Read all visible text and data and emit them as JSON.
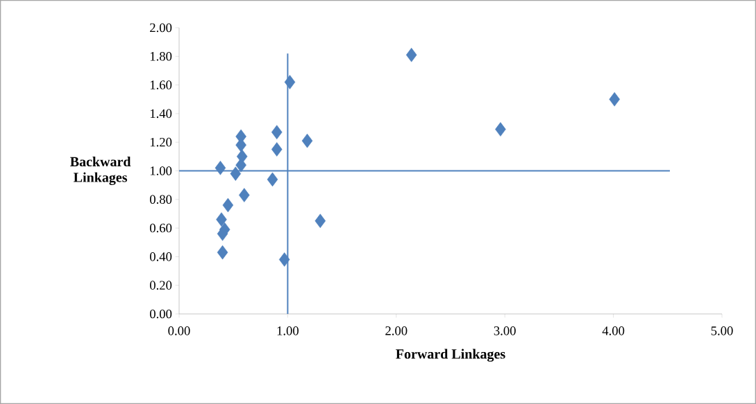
{
  "chart_data": {
    "type": "scatter",
    "xlabel": "Forward Linkages",
    "ylabel": "Backward Linkages",
    "series": [
      {
        "color": "#4f81bd",
        "marker": "diamond",
        "x": [
          0.57,
          0.9,
          1.18,
          0.57,
          0.9,
          0.58,
          0.57,
          0.38,
          0.52,
          0.86,
          0.6,
          0.45,
          0.39,
          0.42,
          0.4,
          1.3,
          0.4,
          0.97,
          1.02,
          2.14,
          2.96,
          4.01
        ],
        "values": [
          1.24,
          1.27,
          1.21,
          1.18,
          1.15,
          1.1,
          1.04,
          1.02,
          0.98,
          0.94,
          0.83,
          0.76,
          0.66,
          0.59,
          0.56,
          0.65,
          0.43,
          0.38,
          1.62,
          1.81,
          1.29,
          1.5
        ]
      },
      {
        "type": "line",
        "color": "#4f81bd",
        "marker": "none",
        "line_style": "solid",
        "x": [
          1,
          1
        ],
        "values": [
          0,
          1.82
        ]
      },
      {
        "type": "line",
        "color": "#4f81bd",
        "marker": "none",
        "line_style": "solid",
        "x": [
          0,
          4.52
        ],
        "values": [
          1,
          1
        ]
      }
    ],
    "xlim": [
      0,
      5
    ],
    "ylim": [
      0,
      2
    ],
    "xticks": [
      {
        "value": 0,
        "label": "0.00"
      },
      {
        "value": 1,
        "label": "1.00"
      },
      {
        "value": 2,
        "label": "2.00"
      },
      {
        "value": 3,
        "label": "3.00"
      },
      {
        "value": 4,
        "label": "4.00"
      },
      {
        "value": 5,
        "label": "5.00"
      }
    ],
    "yticks": [
      {
        "value": 0,
        "label": "0.00"
      },
      {
        "value": 0.2,
        "label": "0.20"
      },
      {
        "value": 0.4,
        "label": "0.40"
      },
      {
        "value": 0.6,
        "label": "0.60"
      },
      {
        "value": 0.8,
        "label": "0.80"
      },
      {
        "value": 1,
        "label": "1.00"
      },
      {
        "value": 1.2,
        "label": "1.20"
      },
      {
        "value": 1.4,
        "label": "1.40"
      },
      {
        "value": 1.6,
        "label": "1.60"
      },
      {
        "value": 1.8,
        "label": "1.80"
      },
      {
        "value": 2,
        "label": "2.00"
      }
    ]
  }
}
